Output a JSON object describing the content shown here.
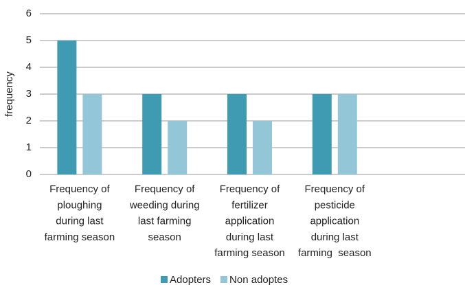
{
  "chart_data": {
    "type": "bar",
    "y_label": "frequency",
    "categories": [
      [
        "Frequency of",
        "ploughing",
        "during last",
        "farming season"
      ],
      [
        "Frequency of",
        "weeding during",
        "last farming",
        "season"
      ],
      [
        "Frequency of",
        "fertilizer",
        "application",
        "during last",
        "farming season"
      ],
      [
        "Frequency of",
        "pesticide",
        "application",
        "during last",
        "farming  season"
      ],
      null
    ],
    "series": [
      {
        "name": "Adopters",
        "color": "#3e9bb2",
        "values": [
          5,
          3,
          3,
          3,
          null
        ]
      },
      {
        "name": "Non adoptes",
        "color": "#93c6d6",
        "values": [
          3,
          2,
          2,
          3,
          null
        ]
      }
    ],
    "ylim": [
      0,
      6
    ],
    "yticks": [
      0,
      1,
      2,
      3,
      4,
      5,
      6
    ],
    "grid": true,
    "legend": "bottom"
  }
}
